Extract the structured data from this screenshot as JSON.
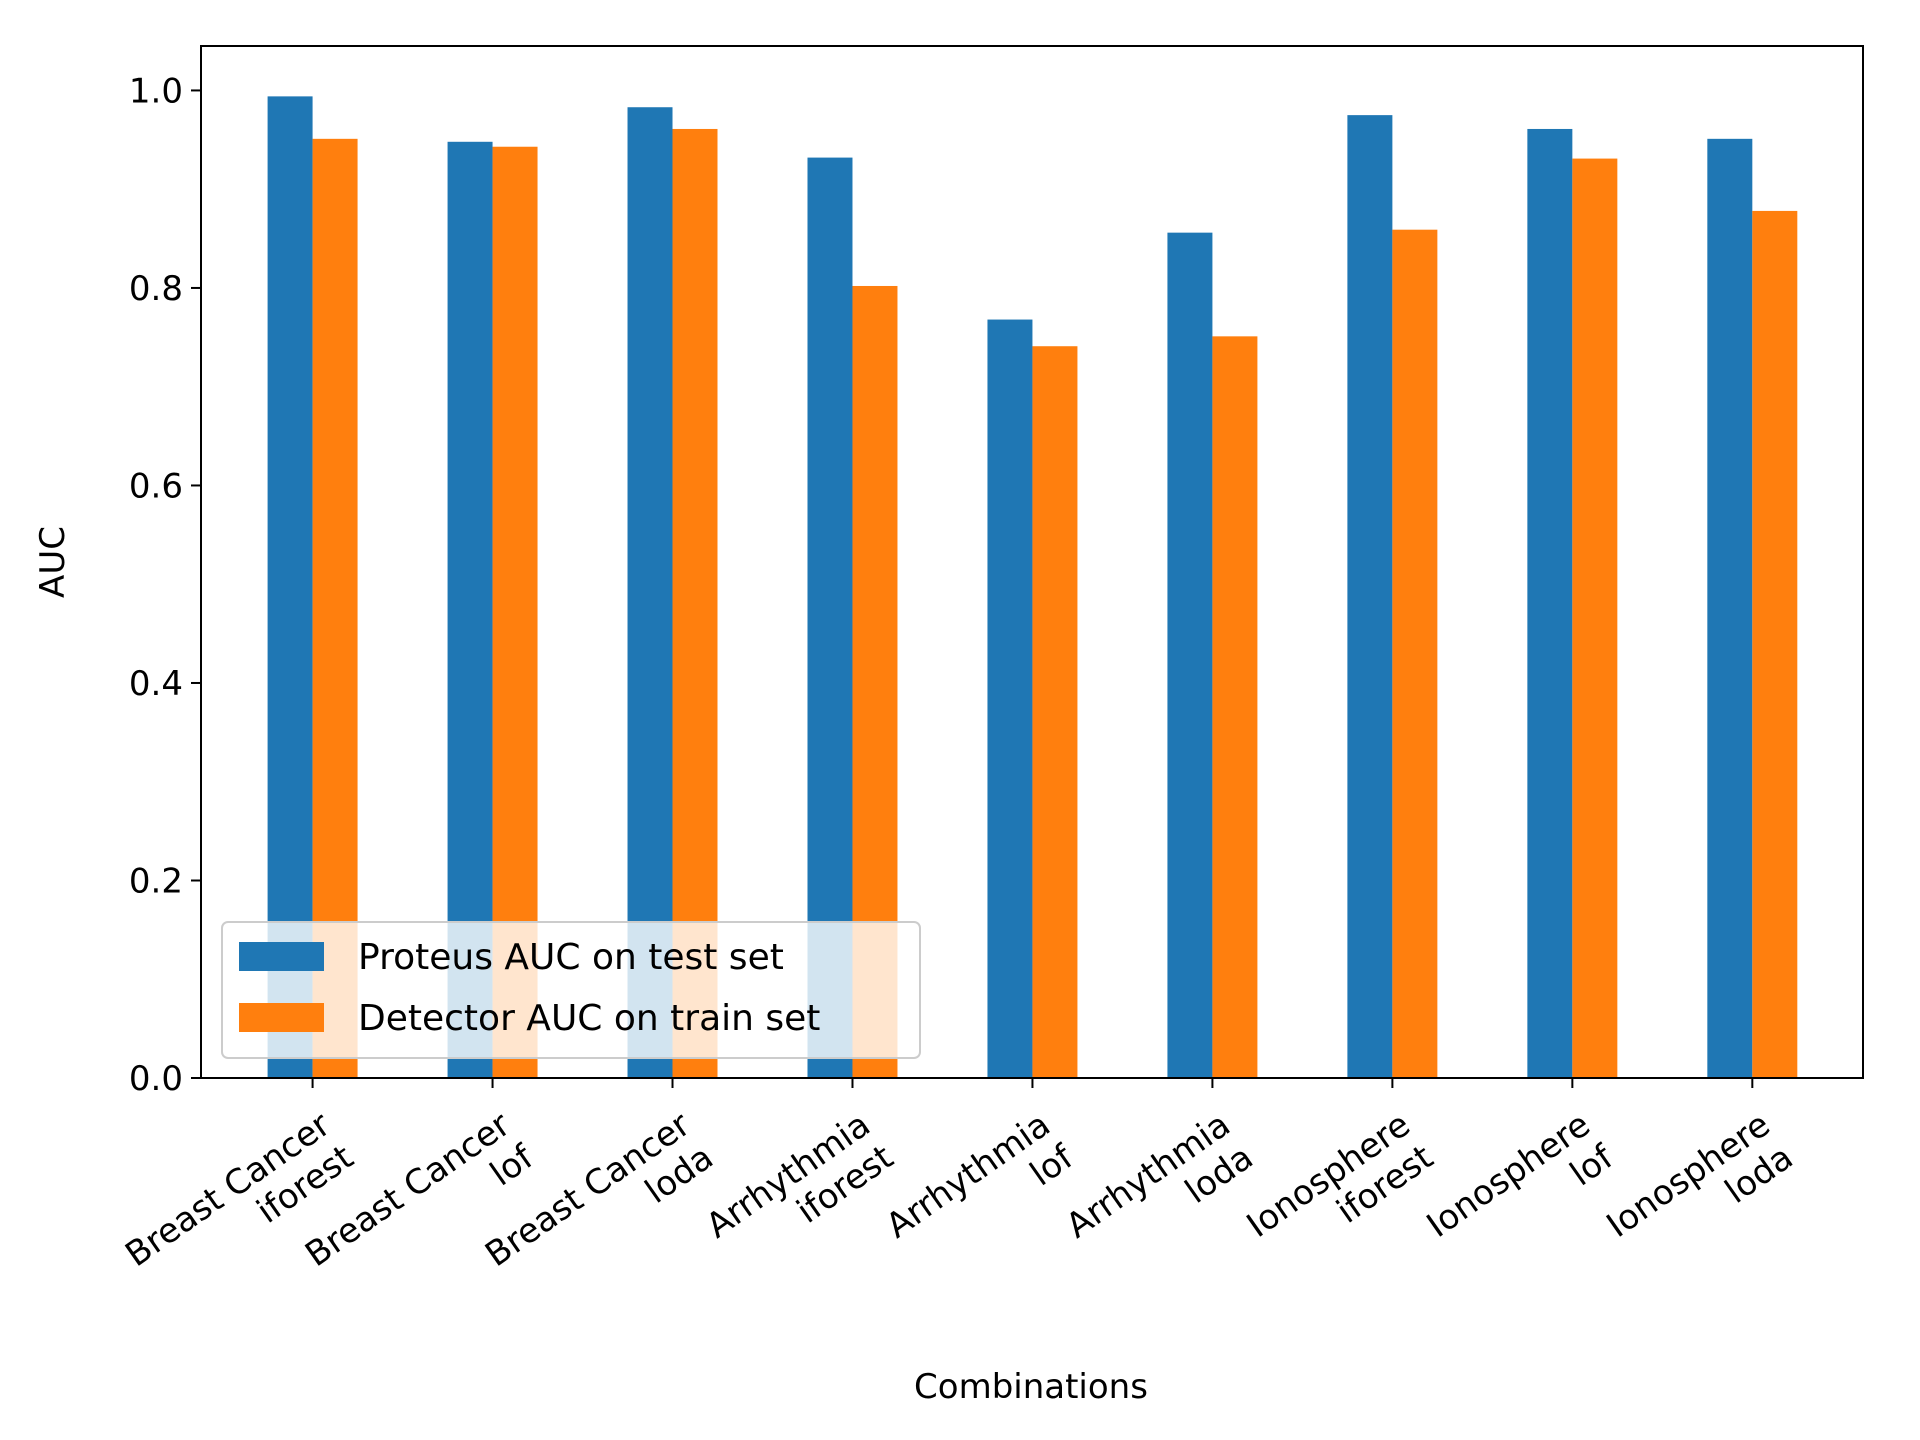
{
  "chart_data": {
    "type": "bar",
    "title": "",
    "xlabel": "Combinations",
    "ylabel": "AUC",
    "ylim": [
      0,
      1.045
    ],
    "yticks": [
      "0.0",
      "0.2",
      "0.4",
      "0.6",
      "0.8",
      "1.0"
    ],
    "ytick_values": [
      0.0,
      0.2,
      0.4,
      0.6,
      0.8,
      1.0
    ],
    "categories": [
      [
        "Breast Cancer",
        "iforest"
      ],
      [
        "Breast Cancer",
        "lof"
      ],
      [
        "Breast Cancer",
        "loda"
      ],
      [
        "Arrhythmia",
        "iforest"
      ],
      [
        "Arrhythmia",
        "lof"
      ],
      [
        "Arrhythmia",
        "loda"
      ],
      [
        "Ionosphere",
        "iforest"
      ],
      [
        "Ionosphere",
        "lof"
      ],
      [
        "Ionosphere",
        "loda"
      ]
    ],
    "series": [
      {
        "name": "Proteus AUC on test set",
        "color": "#1f77b4",
        "values": [
          0.994,
          0.948,
          0.983,
          0.932,
          0.768,
          0.856,
          0.975,
          0.961,
          0.951
        ]
      },
      {
        "name": "Detector AUC on train set",
        "color": "#ff7f0e",
        "values": [
          0.951,
          0.943,
          0.961,
          0.802,
          0.741,
          0.751,
          0.859,
          0.931,
          0.878
        ]
      }
    ],
    "legend_position": "lower-left",
    "grid": false
  }
}
